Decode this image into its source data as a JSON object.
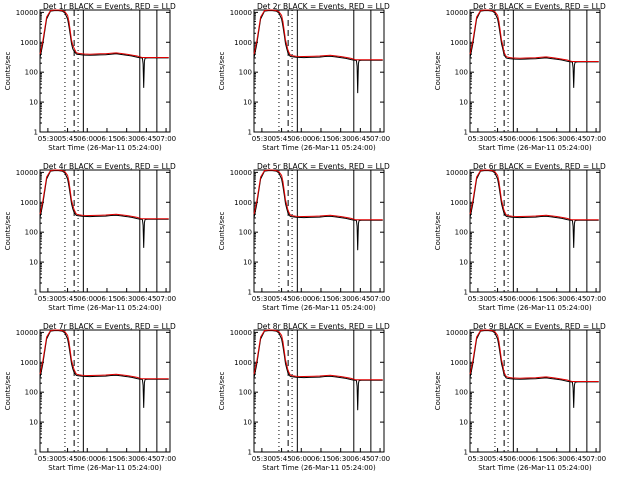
{
  "chart_data": [
    {
      "type": "line",
      "title": "Det 1r BLACK = Events, RED = LLD",
      "xlabel": "Start Time (26-Mar-11 05:24:00)",
      "ylabel": "Counts/sec",
      "tail": 300,
      "drop": 30
    },
    {
      "type": "line",
      "title": "Det 2r BLACK = Events, RED = LLD",
      "xlabel": "Start Time (26-Mar-11 05:24:00)",
      "ylabel": "Counts/sec",
      "tail": 250,
      "drop": 20
    },
    {
      "type": "line",
      "title": "Det 3r BLACK = Events, RED = LLD",
      "xlabel": "Start Time (26-Mar-11 05:24:00)",
      "ylabel": "Counts/sec",
      "tail": 220,
      "drop": 30
    },
    {
      "type": "line",
      "title": "Det 4r BLACK = Events, RED = LLD",
      "xlabel": "Start Time (26-Mar-11 05:24:00)",
      "ylabel": "Counts/sec",
      "tail": 270,
      "drop": 30
    },
    {
      "type": "line",
      "title": "Det 5r BLACK = Events, RED = LLD",
      "xlabel": "Start Time (26-Mar-11 05:24:00)",
      "ylabel": "Counts/sec",
      "tail": 250,
      "drop": 25
    },
    {
      "type": "line",
      "title": "Det 6r BLACK = Events, RED = LLD",
      "xlabel": "Start Time (26-Mar-11 05:24:00)",
      "ylabel": "Counts/sec",
      "tail": 250,
      "drop": 30
    },
    {
      "type": "line",
      "title": "Det 7r BLACK = Events, RED = LLD",
      "xlabel": "Start Time (26-Mar-11 05:24:00)",
      "ylabel": "Counts/sec",
      "tail": 270,
      "drop": 30
    },
    {
      "type": "line",
      "title": "Det 8r BLACK = Events, RED = LLD",
      "xlabel": "Start Time (26-Mar-11 05:24:00)",
      "ylabel": "Counts/sec",
      "tail": 250,
      "drop": 25
    },
    {
      "type": "line",
      "title": "Det 9r BLACK = Events, RED = LLD",
      "xlabel": "Start Time (26-Mar-11 05:24:00)",
      "ylabel": "Counts/sec",
      "tail": 220,
      "drop": 30
    }
  ],
  "axes": {
    "xticks": [
      "05:30",
      "05:45",
      "06:00",
      "06:15",
      "06:30",
      "06:45",
      "07:00"
    ],
    "yticks": [
      "1",
      "10",
      "100",
      "1000",
      "10000"
    ],
    "xlim": [
      "05:24",
      "07:03"
    ],
    "ylim": [
      1,
      12000
    ],
    "yscale": "log"
  },
  "markers": {
    "dotted": [
      "05:43",
      "05:53"
    ],
    "dashed": [
      "05:50"
    ],
    "solid": [
      "05:57",
      "06:40",
      "06:53"
    ]
  },
  "series_template": {
    "x_minutes": [
      0,
      2,
      5,
      8,
      11,
      14,
      17,
      19,
      21,
      22,
      23,
      24,
      25,
      26,
      27,
      27.5,
      28,
      29,
      30,
      32,
      34,
      38,
      42,
      46,
      50,
      54,
      58,
      62,
      66,
      70,
      74,
      76,
      77,
      78,
      78.5,
      79,
      79.5,
      80,
      82,
      86,
      90,
      94,
      98
    ],
    "events": [
      300,
      800,
      6000,
      11000,
      11500,
      11500,
      11000,
      9500,
      6000,
      3500,
      1800,
      900,
      600,
      480,
      420,
      390,
      380,
      375,
      370,
      360,
      355,
      350,
      355,
      360,
      365,
      380,
      390,
      370,
      350,
      330,
      300,
      290,
      285,
      280,
      180,
      25,
      220,
      280,
      285,
      285,
      285,
      285,
      285
    ],
    "lld": [
      400,
      1000,
      7000,
      11500,
      12000,
      12000,
      11500,
      10500,
      8000,
      5000,
      2500,
      1200,
      800,
      600,
      480,
      440,
      420,
      410,
      400,
      390,
      385,
      380,
      385,
      390,
      395,
      410,
      420,
      400,
      380,
      355,
      330,
      310,
      300,
      295,
      295,
      295,
      295,
      295,
      295,
      295,
      295,
      295,
      295
    ]
  },
  "colors": {
    "events": "#000000",
    "lld": "#e00000",
    "background": "#ffffff"
  }
}
